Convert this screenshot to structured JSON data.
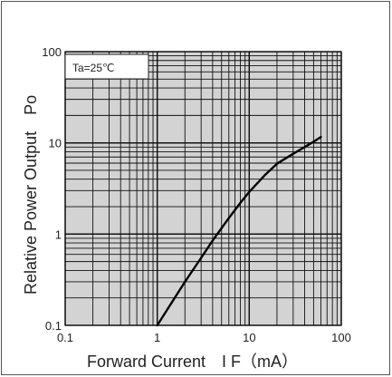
{
  "chart_data": {
    "type": "line",
    "x_scale": "log",
    "y_scale": "log",
    "xlim": [
      0.1,
      100
    ],
    "ylim": [
      0.1,
      100
    ],
    "xlabel": "Forward Current　I F（mA）",
    "ylabel": "Relative Power Output　Po",
    "x_ticks": [
      "0.1",
      "1",
      "10",
      "100"
    ],
    "y_ticks": [
      "0.1",
      "1",
      "10",
      "100"
    ],
    "annotation": "Ta=25℃",
    "grid": true,
    "legend": "none",
    "colors": {
      "plot_bg": "#d3d3d3",
      "grid": "#111111",
      "curve": "#000000"
    },
    "series": [
      {
        "x": [
          1.0,
          1.5,
          2.0,
          3.0,
          4.0,
          6.0,
          8.0,
          10.0,
          15.0,
          20.0,
          30.0,
          40.0,
          50.0,
          60.0
        ],
        "y": [
          0.1,
          0.19,
          0.3,
          0.55,
          0.85,
          1.5,
          2.2,
          2.9,
          4.5,
          5.9,
          7.6,
          9.0,
          10.3,
          11.6
        ]
      }
    ]
  }
}
